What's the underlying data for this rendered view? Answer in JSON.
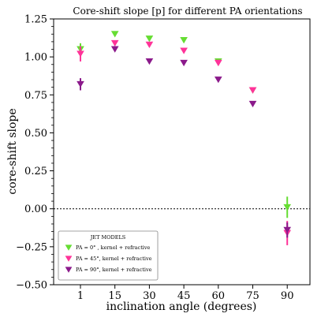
{
  "chart_data": {
    "type": "scatter",
    "title": "Core-shift slope [p] for different PA orientations",
    "xlabel": "inclination angle (degrees)",
    "ylabel": "core-shift slope",
    "categories": [
      "1",
      "15",
      "30",
      "45",
      "60",
      "75",
      "90"
    ],
    "ylim": [
      -0.5,
      1.25
    ],
    "yticks": [
      "−0.50",
      "−0.25",
      "0.00",
      "0.25",
      "0.50",
      "0.75",
      "1.00",
      "1.25"
    ],
    "reference_line": {
      "y": 0.0,
      "style": "dotted"
    },
    "grid": false,
    "legend": {
      "title": "JET MODELS",
      "position": "lower-left",
      "entries": [
        {
          "label": "PA = 0°  , kernel + refractive",
          "series_index": 0
        },
        {
          "label": "PA = 45°, kernel + refractive",
          "series_index": 1
        },
        {
          "label": "PA = 90°, kernel + refractive",
          "series_index": 2
        }
      ]
    },
    "series": [
      {
        "color": "#66dd33",
        "marker": "triangle-down",
        "values": [
          1.05,
          1.15,
          1.12,
          1.11,
          0.97,
          0.78,
          0.01
        ],
        "errors": [
          0.04,
          0.01,
          0.01,
          0.01,
          0.01,
          0.01,
          0.07
        ]
      },
      {
        "color": "#ff3399",
        "marker": "triangle-down",
        "values": [
          1.02,
          1.09,
          1.08,
          1.04,
          0.96,
          0.78,
          -0.16
        ],
        "errors": [
          0.05,
          0.01,
          0.01,
          0.01,
          0.01,
          0.01,
          0.08
        ]
      },
      {
        "color": "#8b1a8b",
        "marker": "triangle-down",
        "values": [
          0.82,
          1.05,
          0.97,
          0.96,
          0.85,
          0.69,
          -0.14
        ],
        "errors": [
          0.04,
          0.01,
          0.01,
          0.01,
          0.01,
          0.01,
          0.05
        ]
      }
    ]
  }
}
